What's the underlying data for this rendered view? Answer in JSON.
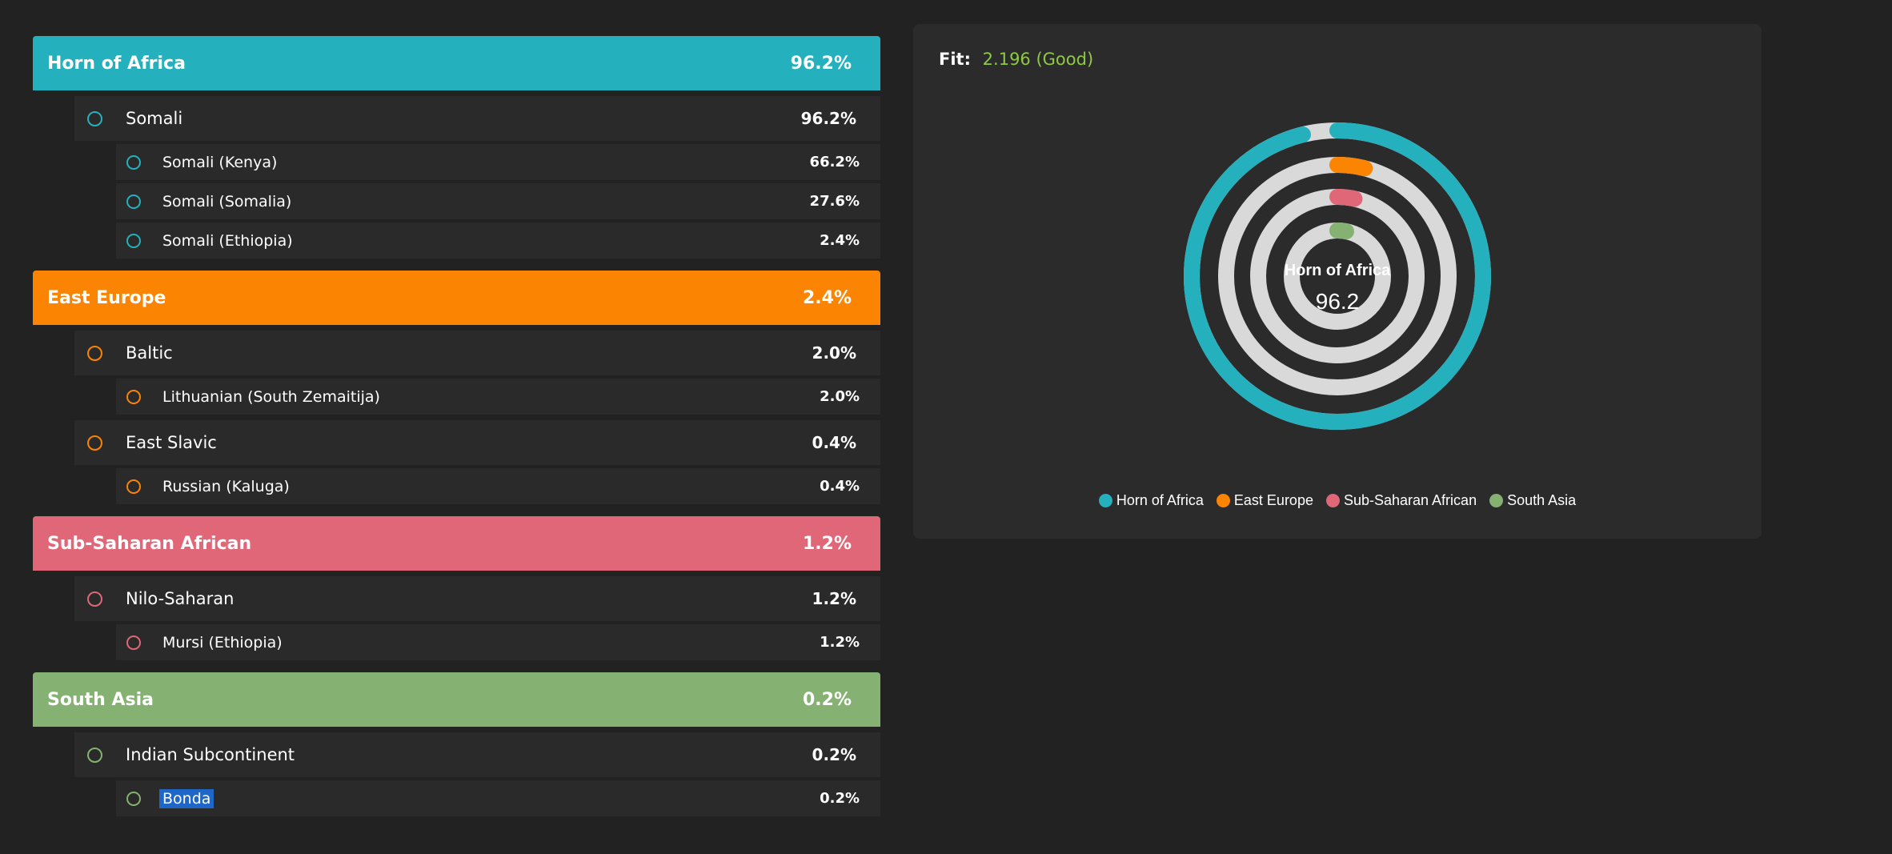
{
  "colors": {
    "horn": "#24b1bd",
    "east_europe": "#fb8403",
    "sub_saharan": "#e06778",
    "south_asia": "#85b272",
    "ring_track": "#d9d9d9",
    "fit_value": "#8ec943"
  },
  "groups": [
    {
      "region": "Horn of Africa",
      "pct": "96.2%",
      "subs": [
        {
          "name": "Somali",
          "pct": "96.2%",
          "leaves": [
            {
              "name": "Somali (Kenya)",
              "pct": "66.2%"
            },
            {
              "name": "Somali (Somalia)",
              "pct": "27.6%"
            },
            {
              "name": "Somali (Ethiopia)",
              "pct": "2.4%"
            }
          ]
        }
      ]
    },
    {
      "region": "East Europe",
      "pct": "2.4%",
      "subs": [
        {
          "name": "Baltic",
          "pct": "2.0%",
          "leaves": [
            {
              "name": "Lithuanian (South Zemaitija)",
              "pct": "2.0%"
            }
          ]
        },
        {
          "name": "East Slavic",
          "pct": "0.4%",
          "leaves": [
            {
              "name": "Russian (Kaluga)",
              "pct": "0.4%"
            }
          ]
        }
      ]
    },
    {
      "region": "Sub-Saharan African",
      "pct": "1.2%",
      "subs": [
        {
          "name": "Nilo-Saharan",
          "pct": "1.2%",
          "leaves": [
            {
              "name": "Mursi (Ethiopia)",
              "pct": "1.2%"
            }
          ]
        }
      ]
    },
    {
      "region": "South Asia",
      "pct": "0.2%",
      "subs": [
        {
          "name": "Indian Subcontinent",
          "pct": "0.2%",
          "leaves": [
            {
              "name": "Bonda",
              "pct": "0.2%",
              "selected": true
            }
          ]
        }
      ]
    }
  ],
  "fit": {
    "label": "Fit:",
    "value": "2.196 (Good)"
  },
  "chart_data": {
    "type": "radial-bar",
    "center_label": "Horn of Africa",
    "center_value": "96.2",
    "series": [
      {
        "name": "Horn of Africa",
        "value": 96.2,
        "color": "#24b1bd"
      },
      {
        "name": "East Europe",
        "value": 2.4,
        "color": "#fb8403"
      },
      {
        "name": "Sub-Saharan African",
        "value": 1.2,
        "color": "#e06778"
      },
      {
        "name": "South Asia",
        "value": 0.2,
        "color": "#85b272"
      }
    ],
    "max": 100,
    "legend_position": "bottom"
  }
}
